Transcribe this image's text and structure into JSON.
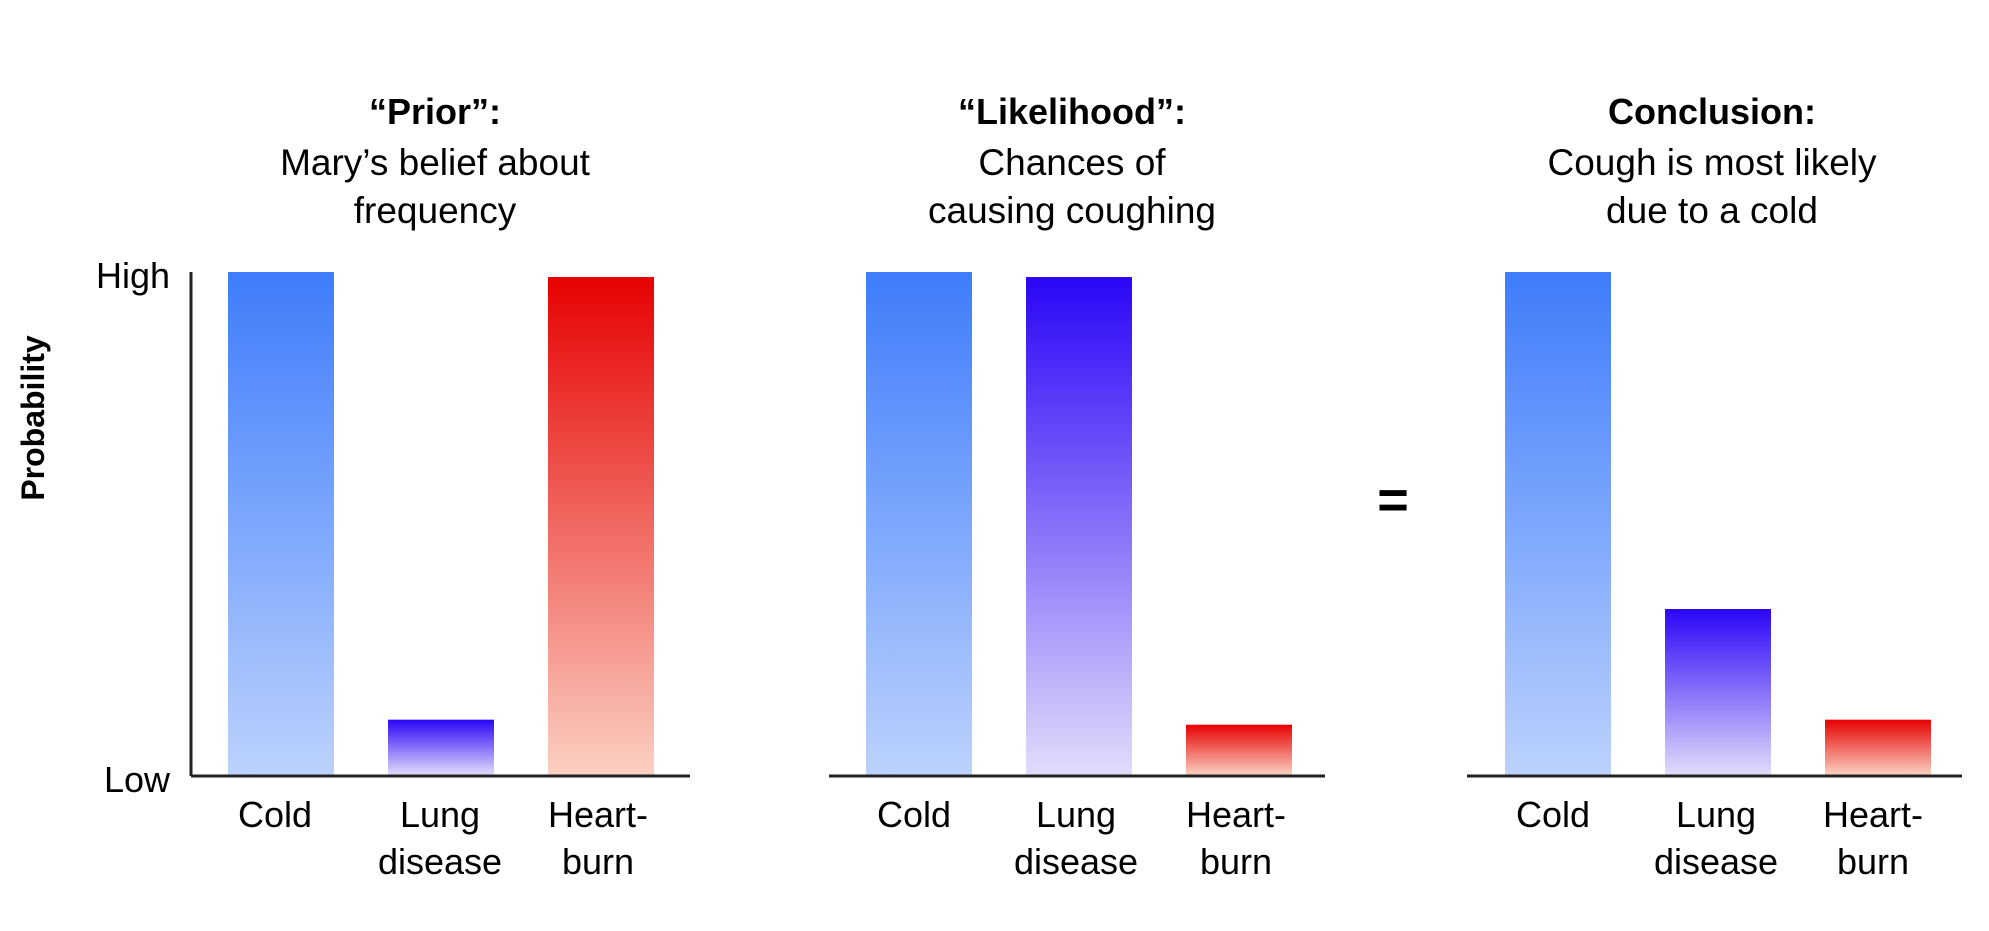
{
  "equals_sign": "=",
  "colors": {
    "cold": [
      "#3e7cfb",
      "#bcd2fd"
    ],
    "lung": [
      "#2a06f7",
      "#e2dcfb"
    ],
    "heartburn": [
      "#e60101",
      "#fbd0c2"
    ],
    "axis": "#222222"
  },
  "chart_data": [
    {
      "type": "bar",
      "title": "“Prior”:",
      "subtitle": [
        "Mary’s belief about",
        "frequency"
      ],
      "ylabel": "Probability",
      "yticks": [
        "High",
        "Low"
      ],
      "ylim": [
        0,
        1
      ],
      "categories": [
        [
          "Cold"
        ],
        [
          "Lung",
          "disease"
        ],
        [
          "Heart-",
          "burn"
        ]
      ],
      "values": [
        1.0,
        0.11,
        0.99
      ],
      "color_keys": [
        "cold",
        "lung",
        "heartburn"
      ]
    },
    {
      "type": "bar",
      "title": "“Likelihood”:",
      "subtitle": [
        "Chances of",
        "causing coughing"
      ],
      "ylabel": "",
      "yticks": [],
      "ylim": [
        0,
        1
      ],
      "categories": [
        [
          "Cold"
        ],
        [
          "Lung",
          "disease"
        ],
        [
          "Heart-",
          "burn"
        ]
      ],
      "values": [
        1.0,
        0.99,
        0.1
      ],
      "color_keys": [
        "cold",
        "lung",
        "heartburn"
      ]
    },
    {
      "type": "bar",
      "title": "Conclusion:",
      "subtitle": [
        "Cough is most likely",
        "due to a cold"
      ],
      "ylabel": "",
      "yticks": [],
      "ylim": [
        0,
        1
      ],
      "categories": [
        [
          "Cold"
        ],
        [
          "Lung",
          "disease"
        ],
        [
          "Heart-",
          "burn"
        ]
      ],
      "values": [
        1.0,
        0.33,
        0.11
      ],
      "color_keys": [
        "cold",
        "lung",
        "heartburn"
      ]
    }
  ]
}
